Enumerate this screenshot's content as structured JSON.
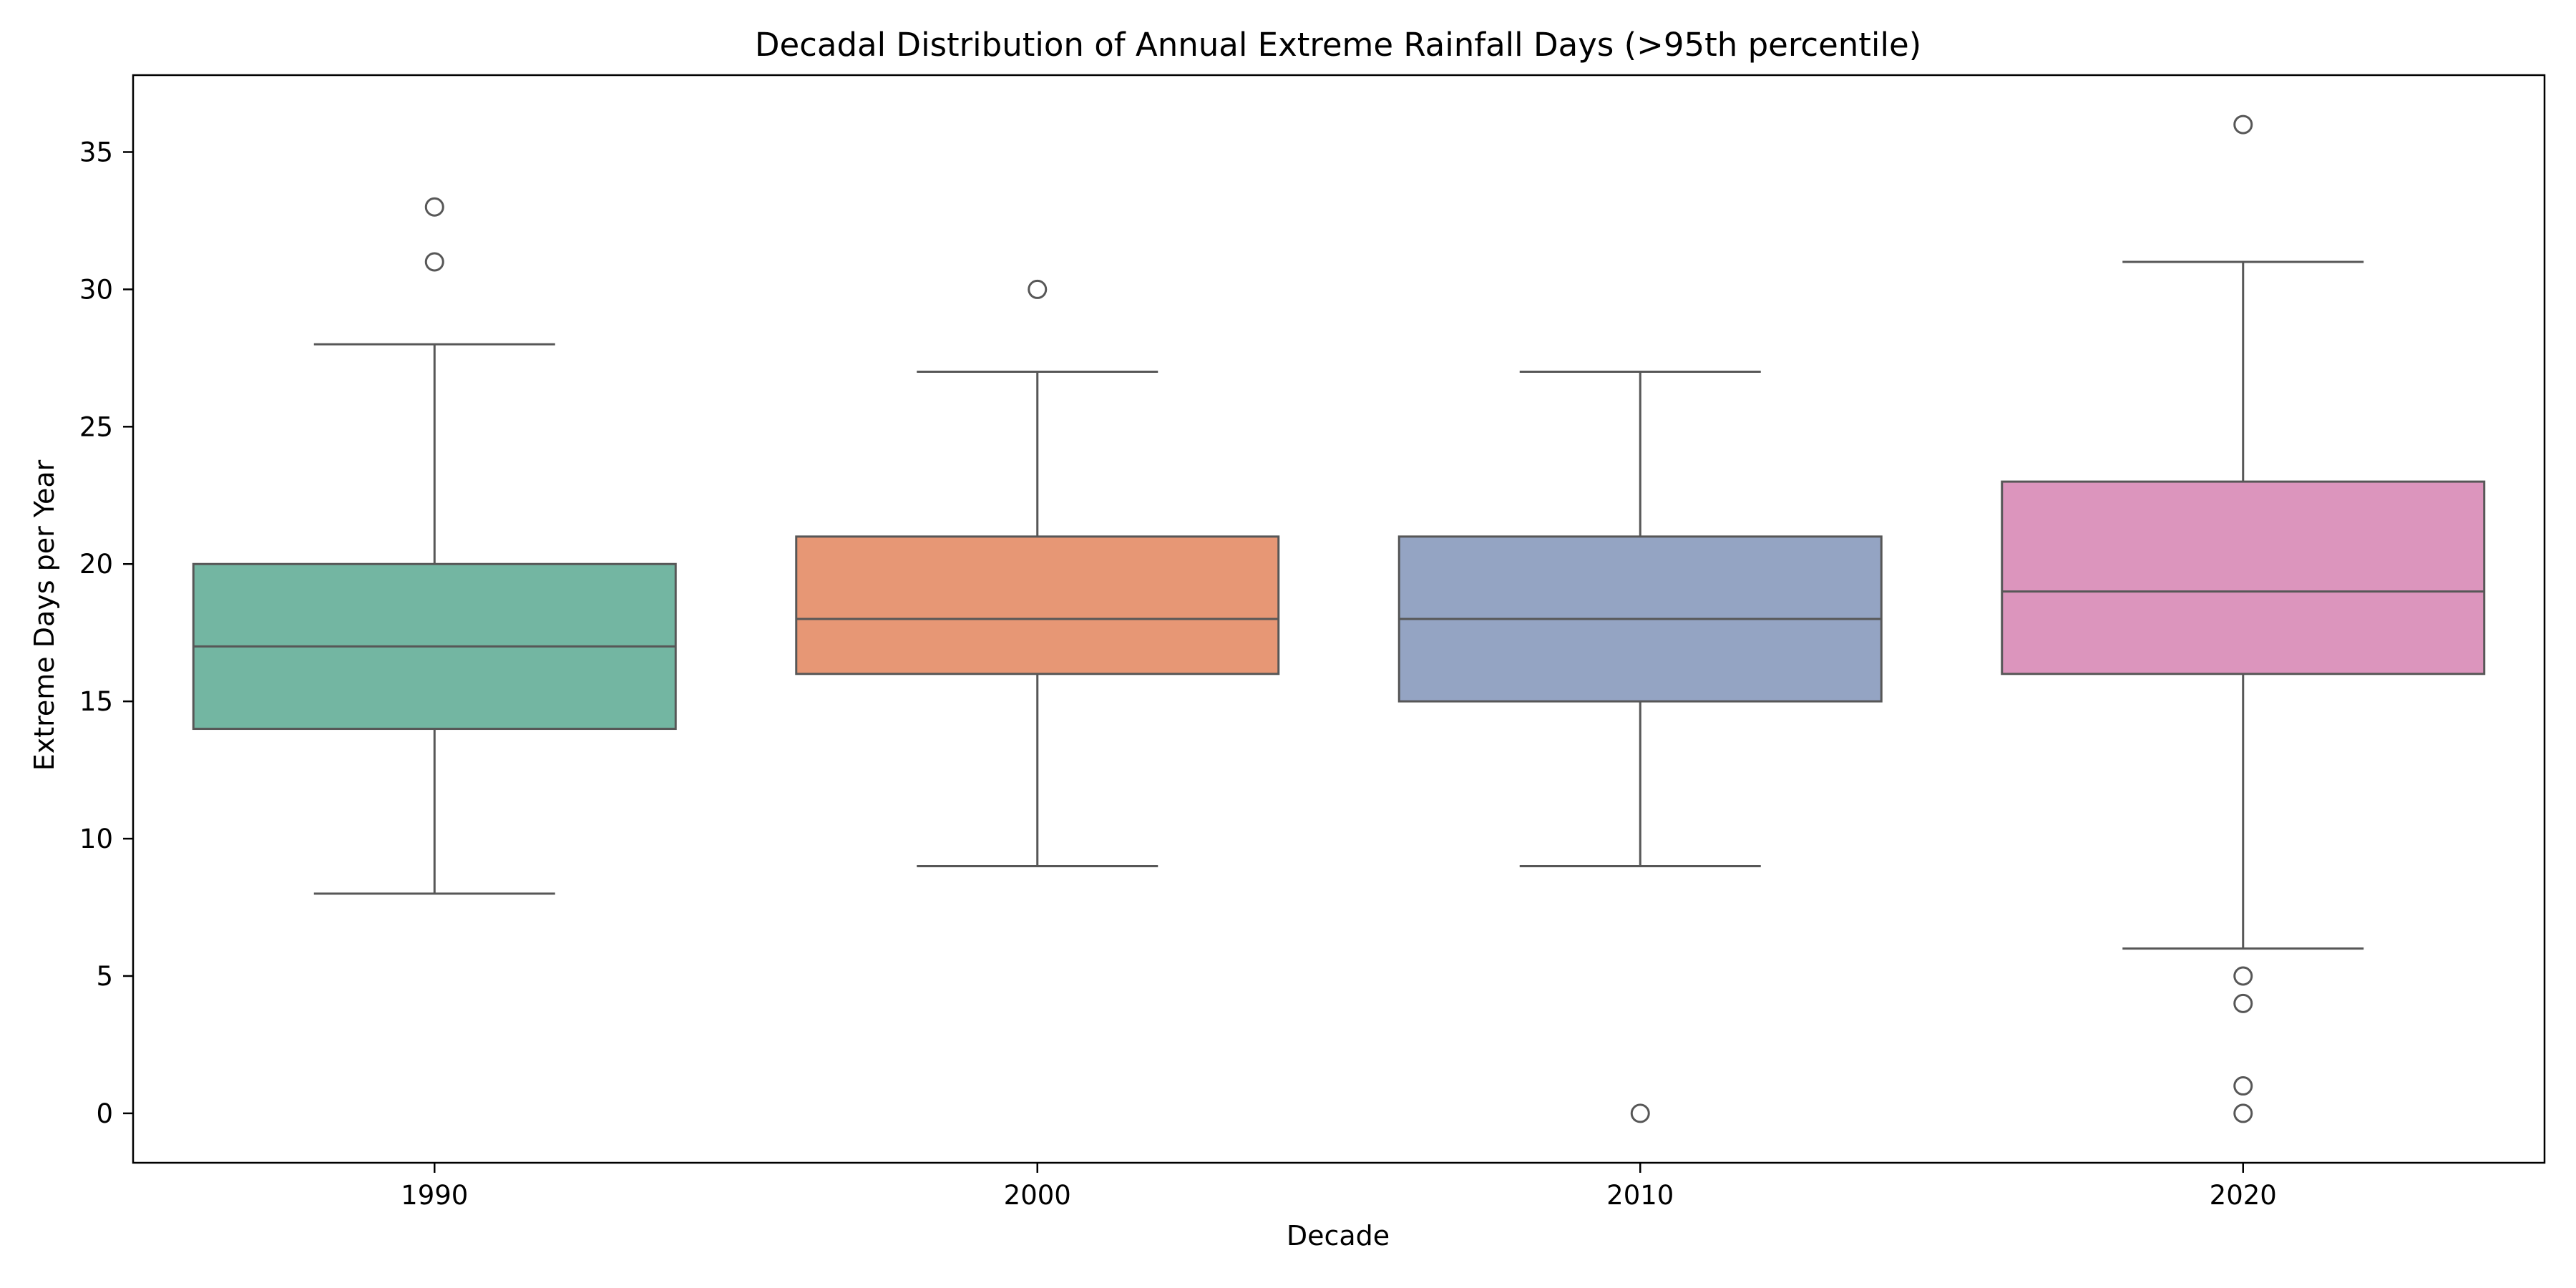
{
  "chart_data": {
    "type": "box",
    "title": "Decadal Distribution of Annual Extreme Rainfall Days (>95th percentile)",
    "xlabel": "Decade",
    "ylabel": "Extreme Days per Year",
    "ylim": [
      -1.8,
      37.8
    ],
    "yticks": [
      0,
      5,
      10,
      15,
      20,
      25,
      30,
      35
    ],
    "grid": false,
    "boxes": [
      {
        "category": "1990",
        "whisker_low": 8,
        "q1": 14,
        "median": 17,
        "q3": 20,
        "whisker_high": 28,
        "outliers": [
          31,
          33
        ],
        "color": "#73b6a2"
      },
      {
        "category": "2000",
        "whisker_low": 9,
        "q1": 16,
        "median": 18,
        "q3": 21,
        "whisker_high": 27,
        "outliers": [
          30
        ],
        "color": "#e79775"
      },
      {
        "category": "2010",
        "whisker_low": 9,
        "q1": 15,
        "median": 18,
        "q3": 21,
        "whisker_high": 27,
        "outliers": [
          0
        ],
        "color": "#94a4c3"
      },
      {
        "category": "2020",
        "whisker_low": 6,
        "q1": 16,
        "median": 19,
        "q3": 23,
        "whisker_high": 31,
        "outliers": [
          0,
          1,
          4,
          5,
          36
        ],
        "color": "#dc95bd"
      }
    ],
    "line_color": "#575757"
  }
}
